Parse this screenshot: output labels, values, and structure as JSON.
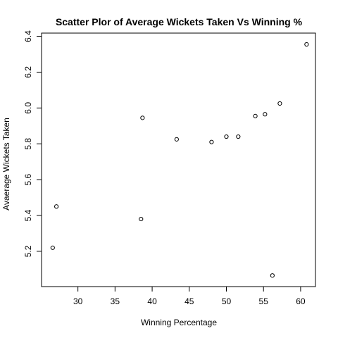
{
  "chart_data": {
    "type": "scatter",
    "title": "Scatter Plor of Average Wickets Taken Vs Winning %",
    "xlabel": "Winning Percentage",
    "ylabel": "Avaerage Wickets Taken",
    "xlim": [
      25.1,
      62.0
    ],
    "ylim": [
      5.003,
      6.418
    ],
    "x_ticks": [
      30,
      35,
      40,
      45,
      50,
      55,
      60
    ],
    "y_ticks": [
      5.2,
      5.4,
      5.6,
      5.8,
      6.0,
      6.2,
      6.4
    ],
    "y_tick_labels": [
      "5.2",
      "5.4",
      "5.6",
      "5.8",
      "6.0",
      "6.2",
      "6.4"
    ],
    "grid": false,
    "points": [
      {
        "x": 26.6,
        "y": 5.22
      },
      {
        "x": 27.1,
        "y": 5.45
      },
      {
        "x": 38.5,
        "y": 5.38
      },
      {
        "x": 38.7,
        "y": 5.945
      },
      {
        "x": 43.3,
        "y": 5.825
      },
      {
        "x": 48.0,
        "y": 5.81
      },
      {
        "x": 50.0,
        "y": 5.84
      },
      {
        "x": 51.6,
        "y": 5.84
      },
      {
        "x": 53.9,
        "y": 5.955
      },
      {
        "x": 55.2,
        "y": 5.965
      },
      {
        "x": 56.2,
        "y": 5.065
      },
      {
        "x": 57.2,
        "y": 6.025
      },
      {
        "x": 60.8,
        "y": 6.355
      }
    ]
  }
}
